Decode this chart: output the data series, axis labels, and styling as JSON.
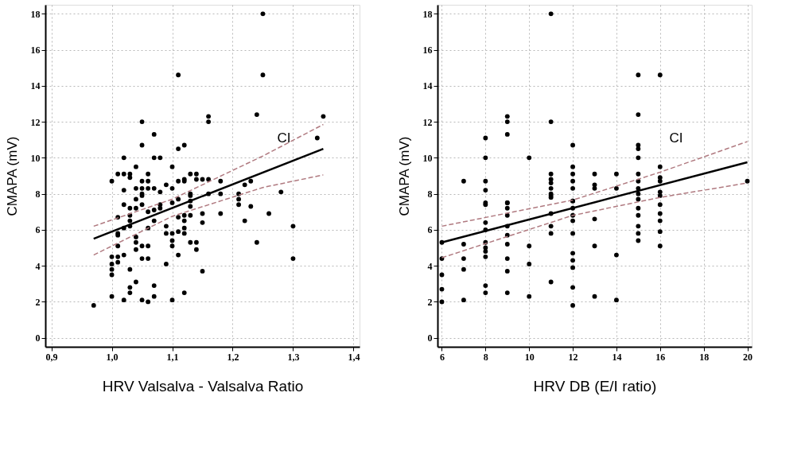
{
  "chart_data": [
    {
      "type": "scatter",
      "xlabel": "HRV Valsalva - Valsalva Ratio",
      "ylabel": "CMAPA (mV)",
      "xlim": [
        0.89,
        1.41
      ],
      "ylim": [
        -0.5,
        18.5
      ],
      "xticks": [
        {
          "value": 0.9,
          "label": "0,9"
        },
        {
          "value": 1.0,
          "label": "1,0"
        },
        {
          "value": 1.1,
          "label": "1,1"
        },
        {
          "value": 1.2,
          "label": "1,2"
        },
        {
          "value": 1.3,
          "label": "1,3"
        },
        {
          "value": 1.4,
          "label": "1,4"
        }
      ],
      "yticks": [
        0,
        2,
        4,
        6,
        8,
        10,
        12,
        14,
        16,
        18
      ],
      "grid": true,
      "marker": "circle",
      "annotations": [
        "CI"
      ],
      "series": [
        {
          "color": "#000000",
          "x": [
            1.25,
            1.11,
            1.25,
            1.05,
            1.16,
            1.16,
            1.24,
            1.35,
            1.34,
            1.07,
            1.05,
            1.11,
            1.12,
            1.02,
            1.07,
            1.08,
            1.04,
            1.1,
            1.0,
            1.01,
            1.02,
            1.03,
            1.03,
            1.05,
            1.06,
            1.06,
            1.02,
            1.04,
            1.05,
            1.04,
            1.05,
            1.06,
            1.07,
            1.08,
            1.09,
            1.1,
            1.11,
            1.12,
            1.12,
            1.13,
            1.14,
            1.14,
            1.15,
            1.16,
            1.18,
            1.22,
            1.23,
            1.28,
            1.13,
            1.16,
            1.18,
            1.21,
            1.11,
            1.02,
            1.03,
            1.04,
            1.05,
            1.05,
            1.06,
            1.07,
            1.08,
            1.08,
            1.1,
            1.13,
            1.13,
            1.13,
            1.21,
            1.21,
            1.23,
            1.01,
            1.03,
            1.03,
            1.03,
            1.02,
            1.01,
            1.01,
            1.07,
            1.06,
            1.09,
            1.09,
            1.1,
            1.1,
            1.1,
            1.11,
            1.11,
            1.12,
            1.12,
            1.12,
            1.12,
            1.13,
            1.15,
            1.15,
            1.18,
            1.22,
            1.26,
            1.3,
            1.04,
            1.04,
            1.04,
            1.05,
            1.06,
            1.01,
            1.13,
            1.14,
            1.14,
            1.24,
            1.0,
            1.0,
            1.0,
            1.0,
            1.01,
            1.01,
            1.02,
            1.05,
            1.06,
            1.11,
            1.09,
            1.3,
            1.03,
            1.15,
            1.04,
            1.03,
            1.03,
            1.07,
            1.12,
            1.0,
            1.07,
            1.02,
            1.05,
            1.06,
            1.1,
            0.97
          ],
          "values": [
            18,
            14.6,
            14.6,
            12,
            12.3,
            12.0,
            12.4,
            12.3,
            11.1,
            11.3,
            10.7,
            10.5,
            10.7,
            10,
            10,
            10,
            9.5,
            9.5,
            8.7,
            9.1,
            9.1,
            9.1,
            8.9,
            8.7,
            9.1,
            8.7,
            8.2,
            8.3,
            8.3,
            7.7,
            8.0,
            8.3,
            8.3,
            8.1,
            8.5,
            8.3,
            8.7,
            8.8,
            8.7,
            9.1,
            9.1,
            8.8,
            8.8,
            8.8,
            8.7,
            8.5,
            8.7,
            8.1,
            8.0,
            8.0,
            8.0,
            8.0,
            7.7,
            7.4,
            7.2,
            7.2,
            7.9,
            7.4,
            7.0,
            7.1,
            7.2,
            7.4,
            7.5,
            7.9,
            7.6,
            7.3,
            7.7,
            7.4,
            7.3,
            6.7,
            6.8,
            6.5,
            6.2,
            6.1,
            5.8,
            5.7,
            6.5,
            6.1,
            6.2,
            5.8,
            5.8,
            5.4,
            5.1,
            5.9,
            6.7,
            6.8,
            6.5,
            6.1,
            5.8,
            6.8,
            6.9,
            6.4,
            6.9,
            6.5,
            6.9,
            6.2,
            5.6,
            5.3,
            4.9,
            5.1,
            5.1,
            5.1,
            5.3,
            5.3,
            4.9,
            5.3,
            4.5,
            4.1,
            3.8,
            3.5,
            4.5,
            4.2,
            4.6,
            4.4,
            4.4,
            4.6,
            4.1,
            4.4,
            3.8,
            3.7,
            3.1,
            2.8,
            2.5,
            2.9,
            2.5,
            2.3,
            2.3,
            2.1,
            2.1,
            2.0,
            2.1,
            1.8
          ]
        },
        {
          "type": "line",
          "color": "#000000",
          "line_style": "solid",
          "marker": "none",
          "x": [
            0.97,
            1.35
          ],
          "values": [
            5.5,
            10.5
          ]
        },
        {
          "type": "line",
          "color": "#b07a80",
          "line_style": "dashed",
          "marker": "none",
          "x": [
            0.97,
            1.1,
            1.25,
            1.35
          ],
          "values": [
            6.2,
            7.7,
            10.1,
            11.85
          ]
        },
        {
          "type": "line",
          "color": "#b07a80",
          "line_style": "dashed",
          "marker": "none",
          "x": [
            0.97,
            1.1,
            1.25,
            1.35
          ],
          "values": [
            4.6,
            6.75,
            8.35,
            9.05
          ]
        }
      ]
    },
    {
      "type": "scatter",
      "xlabel": "HRV DB (E/I ratio)",
      "ylabel": "CMAPA (mV)",
      "xlim": [
        5.8,
        20.2
      ],
      "ylim": [
        -0.5,
        18.5
      ],
      "xticks": [
        6,
        8,
        10,
        12,
        14,
        16,
        18,
        20
      ],
      "yticks": [
        0,
        2,
        4,
        6,
        8,
        10,
        12,
        14,
        16,
        18
      ],
      "grid": true,
      "marker": "circle",
      "annotations": [
        "CI"
      ],
      "series": [
        {
          "color": "#000000",
          "x": [
            11,
            11,
            9,
            9,
            9,
            8,
            8,
            8,
            8,
            8,
            7,
            10,
            11,
            11,
            11,
            11,
            11,
            11,
            12,
            12,
            12,
            12,
            12,
            12,
            13,
            13,
            13,
            14,
            14,
            15,
            15,
            15,
            15,
            15,
            15,
            15,
            15,
            15,
            16,
            16,
            16,
            16,
            16,
            20,
            9,
            6,
            6,
            6,
            6,
            6,
            7,
            7,
            7,
            7,
            8,
            8,
            8,
            8,
            8,
            8,
            8,
            8,
            8,
            9,
            9,
            9,
            9,
            9,
            9,
            9,
            9,
            9,
            10,
            10,
            10,
            11,
            11,
            11,
            11,
            11,
            12,
            12,
            12,
            12,
            12,
            12,
            12,
            12,
            12,
            12,
            13,
            13,
            13,
            14,
            14,
            15,
            15,
            15,
            15,
            15,
            15,
            16,
            16,
            16,
            16,
            16,
            16
          ],
          "values": [
            18,
            12,
            12.3,
            12.0,
            11.3,
            11.1,
            10,
            8.7,
            8.2,
            7.5,
            8.7,
            10,
            9.1,
            8.8,
            8.6,
            8.3,
            8.0,
            7.8,
            10.7,
            9.5,
            9.1,
            8.7,
            8.3,
            7.6,
            9.1,
            8.5,
            8.3,
            9.1,
            8.3,
            14.6,
            12.4,
            10.7,
            10.5,
            10,
            9.1,
            8.7,
            8.3,
            8.0,
            14.6,
            9.5,
            8.9,
            8.7,
            8.1,
            8.7,
            7.5,
            5.3,
            4.4,
            3.5,
            2.7,
            2.0,
            5.2,
            4.4,
            3.8,
            2.1,
            7.4,
            6.4,
            6.0,
            5.3,
            5.0,
            4.8,
            4.5,
            2.9,
            2.5,
            7.5,
            7.2,
            6.8,
            6.2,
            5.7,
            5.2,
            4.4,
            3.7,
            2.5,
            5.1,
            4.1,
            2.3,
            7.9,
            6.9,
            6.2,
            5.8,
            3.1,
            7.6,
            7.2,
            6.8,
            6.5,
            5.8,
            4.7,
            4.3,
            3.9,
            2.8,
            1.8,
            6.6,
            5.1,
            2.3,
            4.6,
            2.1,
            7.7,
            7.2,
            6.8,
            6.2,
            5.8,
            5.4,
            7.9,
            7.4,
            6.9,
            6.5,
            5.9,
            5.1
          ]
        },
        {
          "type": "line",
          "color": "#000000",
          "line_style": "solid",
          "marker": "none",
          "x": [
            6,
            20
          ],
          "values": [
            5.3,
            9.75
          ]
        },
        {
          "type": "line",
          "color": "#b07a80",
          "line_style": "dashed",
          "marker": "none",
          "x": [
            6,
            12,
            16,
            20
          ],
          "values": [
            6.2,
            7.65,
            9.2,
            10.9
          ]
        },
        {
          "type": "line",
          "color": "#b07a80",
          "line_style": "dashed",
          "marker": "none",
          "x": [
            6,
            12,
            16,
            20
          ],
          "values": [
            4.45,
            6.8,
            7.8,
            8.6
          ]
        }
      ]
    }
  ]
}
